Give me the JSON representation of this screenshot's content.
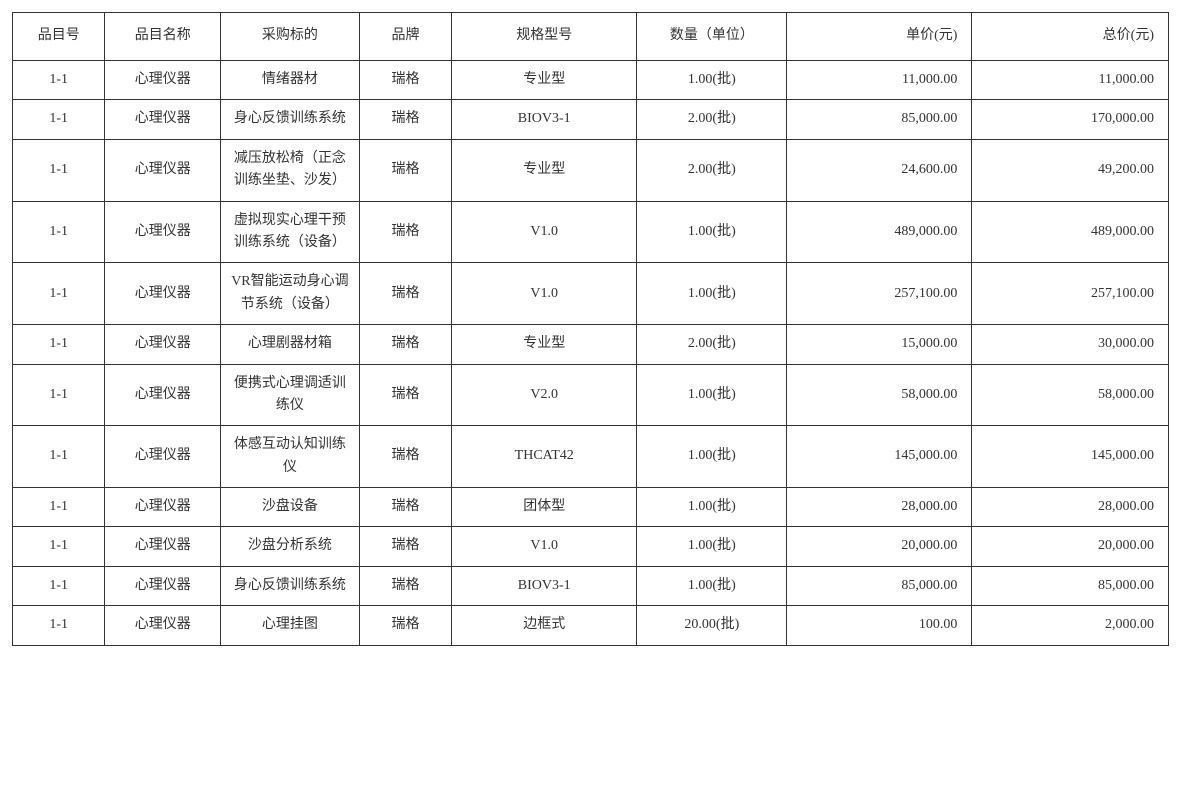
{
  "table": {
    "columns": [
      {
        "key": "item_id",
        "label": "品目号",
        "class": "col-id"
      },
      {
        "key": "item_name",
        "label": "品目名称",
        "class": "col-name"
      },
      {
        "key": "purchase_target",
        "label": "采购标的",
        "class": "col-target"
      },
      {
        "key": "brand",
        "label": "品牌",
        "class": "col-brand"
      },
      {
        "key": "model",
        "label": "规格型号",
        "class": "col-model"
      },
      {
        "key": "quantity",
        "label": "数量（单位）",
        "class": "col-qty"
      },
      {
        "key": "unit_price",
        "label": "单价(元)",
        "class": "col-price"
      },
      {
        "key": "total_price",
        "label": "总价(元)",
        "class": "col-total"
      }
    ],
    "rows": [
      {
        "item_id": "1-1",
        "item_name": "心理仪器",
        "purchase_target": "情绪器材",
        "brand": "瑞格",
        "model": "专业型",
        "quantity": "1.00(批)",
        "unit_price": "11,000.00",
        "total_price": "11,000.00"
      },
      {
        "item_id": "1-1",
        "item_name": "心理仪器",
        "purchase_target": "身心反馈训练系统",
        "brand": "瑞格",
        "model": "BIOV3-1",
        "quantity": "2.00(批)",
        "unit_price": "85,000.00",
        "total_price": "170,000.00"
      },
      {
        "item_id": "1-1",
        "item_name": "心理仪器",
        "purchase_target": "减压放松椅（正念 训练坐垫、沙发）",
        "brand": "瑞格",
        "model": "专业型",
        "quantity": "2.00(批)",
        "unit_price": "24,600.00",
        "total_price": "49,200.00"
      },
      {
        "item_id": "1-1",
        "item_name": "心理仪器",
        "purchase_target": "虚拟现实心理干预 训练系统（设备）",
        "brand": "瑞格",
        "model": "V1.0",
        "quantity": "1.00(批)",
        "unit_price": "489,000.00",
        "total_price": "489,000.00"
      },
      {
        "item_id": "1-1",
        "item_name": "心理仪器",
        "purchase_target": "VR智能运动身心调 节系统（设备）",
        "brand": "瑞格",
        "model": "V1.0",
        "quantity": "1.00(批)",
        "unit_price": "257,100.00",
        "total_price": "257,100.00"
      },
      {
        "item_id": "1-1",
        "item_name": "心理仪器",
        "purchase_target": "心理剧器材箱",
        "brand": "瑞格",
        "model": "专业型",
        "quantity": "2.00(批)",
        "unit_price": "15,000.00",
        "total_price": "30,000.00"
      },
      {
        "item_id": "1-1",
        "item_name": "心理仪器",
        "purchase_target": "便携式心理调适训 练仪",
        "brand": "瑞格",
        "model": "V2.0",
        "quantity": "1.00(批)",
        "unit_price": "58,000.00",
        "total_price": "58,000.00"
      },
      {
        "item_id": "1-1",
        "item_name": "心理仪器",
        "purchase_target": "体感互动认知训练 仪",
        "brand": "瑞格",
        "model": "THCAT42",
        "quantity": "1.00(批)",
        "unit_price": "145,000.00",
        "total_price": "145,000.00"
      },
      {
        "item_id": "1-1",
        "item_name": "心理仪器",
        "purchase_target": "沙盘设备",
        "brand": "瑞格",
        "model": "团体型",
        "quantity": "1.00(批)",
        "unit_price": "28,000.00",
        "total_price": "28,000.00"
      },
      {
        "item_id": "1-1",
        "item_name": "心理仪器",
        "purchase_target": "沙盘分析系统",
        "brand": "瑞格",
        "model": "V1.0",
        "quantity": "1.00(批)",
        "unit_price": "20,000.00",
        "total_price": "20,000.00"
      },
      {
        "item_id": "1-1",
        "item_name": "心理仪器",
        "purchase_target": "身心反馈训练系统",
        "brand": "瑞格",
        "model": "BIOV3-1",
        "quantity": "1.00(批)",
        "unit_price": "85,000.00",
        "total_price": "85,000.00"
      },
      {
        "item_id": "1-1",
        "item_name": "心理仪器",
        "purchase_target": "心理挂图",
        "brand": "瑞格",
        "model": "边框式",
        "quantity": "20.00(批)",
        "unit_price": "100.00",
        "total_price": "2,000.00"
      }
    ],
    "border_color": "#333333",
    "text_color": "#333333",
    "background_color": "#ffffff",
    "font_size": 14
  }
}
